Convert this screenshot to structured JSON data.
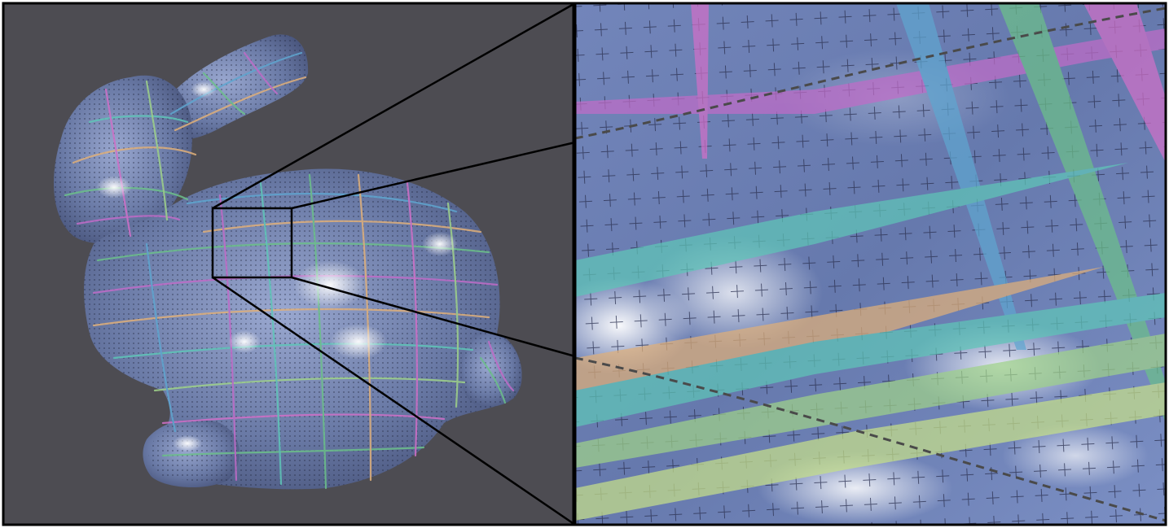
{
  "figure": {
    "left_panel": {
      "subject": "bunny-mesh-with-cross-field",
      "background_color": "#4d4c52",
      "mesh_color": "#6a7aa6",
      "inset_box_color": "#000000"
    },
    "right_panel": {
      "subject": "zoomed-mesh-detail",
      "surface_color": "#6b80b4",
      "highlight_color": "#eef3ff",
      "strips": [
        {
          "name": "magenta-strip",
          "color": "#c06cc8"
        },
        {
          "name": "pink-strip",
          "color": "#d070c8"
        },
        {
          "name": "blue-vertical-strip",
          "color": "#5fa6d0"
        },
        {
          "name": "green-vertical-strip",
          "color": "#6cc08a"
        },
        {
          "name": "teal-strip",
          "color": "#5fc6b8"
        },
        {
          "name": "orange-strip",
          "color": "#e0b07a"
        },
        {
          "name": "green-strip",
          "color": "#9fd28a"
        },
        {
          "name": "yellow-green-strip",
          "color": "#c6e08a"
        }
      ],
      "dashed_line_color": "#4a4a4a"
    },
    "connector_color": "#000000"
  }
}
